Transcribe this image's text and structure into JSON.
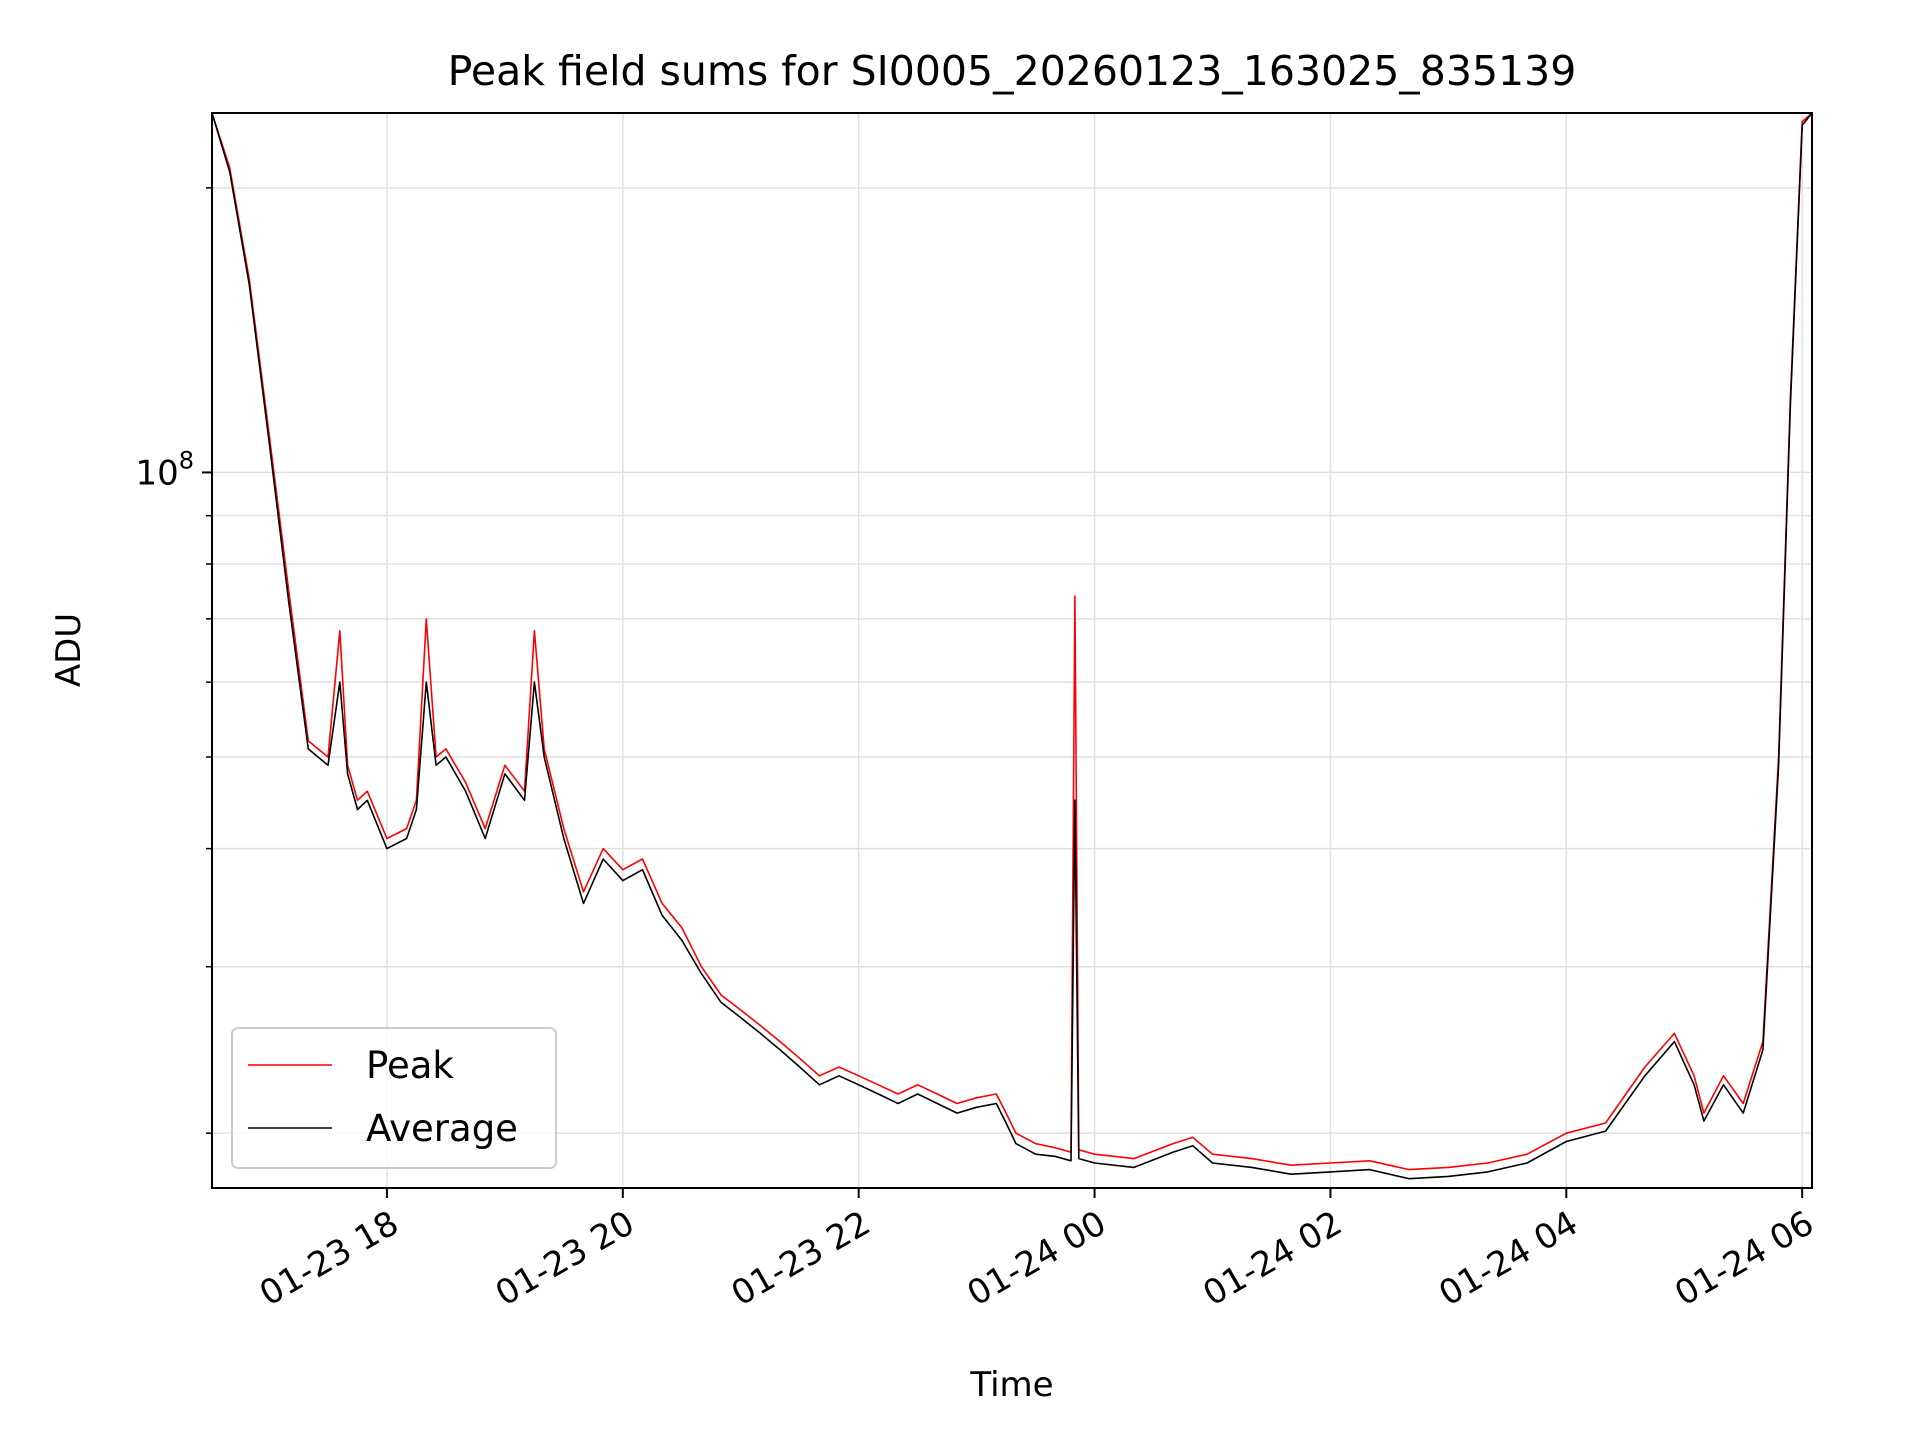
{
  "chart_data": {
    "type": "line",
    "title": "Peak field sums for SI0005_20260123_163025_835139",
    "xlabel": "Time",
    "ylabel": "ADU",
    "x_ticks": [
      "01-23 18",
      "01-23 20",
      "01-23 22",
      "01-24 00",
      "01-24 02",
      "01-24 04",
      "01-24 06"
    ],
    "x_tick_datetimes": [
      "2026-01-23T18:00",
      "2026-01-23T20:00",
      "2026-01-23T22:00",
      "2026-01-24T00:00",
      "2026-01-24T02:00",
      "2026-01-24T04:00",
      "2026-01-24T06:00"
    ],
    "y_scale": "log",
    "y_major_tick_labels": [
      {
        "value": 100000000,
        "base": "10",
        "exp": "8"
      }
    ],
    "y_minor_ticks": [
      20000000,
      30000000,
      40000000,
      50000000,
      60000000,
      70000000,
      80000000,
      90000000,
      200000000
    ],
    "xlim": [
      "2026-01-23T16:31",
      "2026-01-24T06:05"
    ],
    "ylim": [
      17500000,
      240000000
    ],
    "grid": true,
    "legend": {
      "position": "lower-left"
    },
    "series": [
      {
        "name": "Peak",
        "color": "#ff0000",
        "points": [
          [
            "2026-01-23T16:31",
            240000000
          ],
          [
            "2026-01-23T16:40",
            210000000
          ],
          [
            "2026-01-23T16:50",
            160000000
          ],
          [
            "2026-01-23T17:00",
            110000000
          ],
          [
            "2026-01-23T17:10",
            75000000
          ],
          [
            "2026-01-23T17:20",
            52000000
          ],
          [
            "2026-01-23T17:30",
            50000000
          ],
          [
            "2026-01-23T17:36",
            68000000
          ],
          [
            "2026-01-23T17:40",
            49000000
          ],
          [
            "2026-01-23T17:45",
            45000000
          ],
          [
            "2026-01-23T17:50",
            46000000
          ],
          [
            "2026-01-23T18:00",
            41000000
          ],
          [
            "2026-01-23T18:10",
            42000000
          ],
          [
            "2026-01-23T18:15",
            45000000
          ],
          [
            "2026-01-23T18:20",
            70000000
          ],
          [
            "2026-01-23T18:25",
            50000000
          ],
          [
            "2026-01-23T18:30",
            51000000
          ],
          [
            "2026-01-23T18:40",
            47000000
          ],
          [
            "2026-01-23T18:50",
            42000000
          ],
          [
            "2026-01-23T19:00",
            49000000
          ],
          [
            "2026-01-23T19:10",
            46000000
          ],
          [
            "2026-01-23T19:15",
            68000000
          ],
          [
            "2026-01-23T19:20",
            51000000
          ],
          [
            "2026-01-23T19:30",
            42000000
          ],
          [
            "2026-01-23T19:40",
            36000000
          ],
          [
            "2026-01-23T19:50",
            40000000
          ],
          [
            "2026-01-23T20:00",
            38000000
          ],
          [
            "2026-01-23T20:10",
            39000000
          ],
          [
            "2026-01-23T20:20",
            35000000
          ],
          [
            "2026-01-23T20:30",
            33000000
          ],
          [
            "2026-01-23T20:40",
            30000000
          ],
          [
            "2026-01-23T20:50",
            28000000
          ],
          [
            "2026-01-23T21:00",
            27000000
          ],
          [
            "2026-01-23T21:10",
            26000000
          ],
          [
            "2026-01-23T21:20",
            25000000
          ],
          [
            "2026-01-23T21:30",
            24000000
          ],
          [
            "2026-01-23T21:40",
            23000000
          ],
          [
            "2026-01-23T21:50",
            23500000
          ],
          [
            "2026-01-23T22:00",
            23000000
          ],
          [
            "2026-01-23T22:10",
            22500000
          ],
          [
            "2026-01-23T22:20",
            22000000
          ],
          [
            "2026-01-23T22:30",
            22500000
          ],
          [
            "2026-01-23T22:40",
            22000000
          ],
          [
            "2026-01-23T22:50",
            21500000
          ],
          [
            "2026-01-23T23:00",
            21800000
          ],
          [
            "2026-01-23T23:10",
            22000000
          ],
          [
            "2026-01-23T23:15",
            21000000
          ],
          [
            "2026-01-23T23:20",
            20000000
          ],
          [
            "2026-01-23T23:30",
            19500000
          ],
          [
            "2026-01-23T23:40",
            19300000
          ],
          [
            "2026-01-23T23:48",
            19100000
          ],
          [
            "2026-01-23T23:50",
            74000000
          ],
          [
            "2026-01-23T23:52",
            19200000
          ],
          [
            "2026-01-24T00:00",
            19000000
          ],
          [
            "2026-01-24T00:20",
            18800000
          ],
          [
            "2026-01-24T00:40",
            19500000
          ],
          [
            "2026-01-24T00:50",
            19800000
          ],
          [
            "2026-01-24T01:00",
            19000000
          ],
          [
            "2026-01-24T01:20",
            18800000
          ],
          [
            "2026-01-24T01:40",
            18500000
          ],
          [
            "2026-01-24T02:00",
            18600000
          ],
          [
            "2026-01-24T02:20",
            18700000
          ],
          [
            "2026-01-24T02:40",
            18300000
          ],
          [
            "2026-01-24T03:00",
            18400000
          ],
          [
            "2026-01-24T03:20",
            18600000
          ],
          [
            "2026-01-24T03:40",
            19000000
          ],
          [
            "2026-01-24T04:00",
            20000000
          ],
          [
            "2026-01-24T04:20",
            20500000
          ],
          [
            "2026-01-24T04:40",
            23500000
          ],
          [
            "2026-01-24T04:55",
            25500000
          ],
          [
            "2026-01-24T05:05",
            23000000
          ],
          [
            "2026-01-24T05:10",
            21000000
          ],
          [
            "2026-01-24T05:20",
            23000000
          ],
          [
            "2026-01-24T05:30",
            21500000
          ],
          [
            "2026-01-24T05:40",
            25000000
          ],
          [
            "2026-01-24T05:48",
            50000000
          ],
          [
            "2026-01-24T05:54",
            120000000
          ],
          [
            "2026-01-24T06:00",
            235000000
          ],
          [
            "2026-01-24T06:05",
            240000000
          ]
        ]
      },
      {
        "name": "Average",
        "color": "#000000",
        "points": [
          [
            "2026-01-23T16:31",
            240000000
          ],
          [
            "2026-01-23T16:40",
            208000000
          ],
          [
            "2026-01-23T16:50",
            158000000
          ],
          [
            "2026-01-23T17:00",
            108000000
          ],
          [
            "2026-01-23T17:10",
            73000000
          ],
          [
            "2026-01-23T17:20",
            51000000
          ],
          [
            "2026-01-23T17:30",
            49000000
          ],
          [
            "2026-01-23T17:36",
            60000000
          ],
          [
            "2026-01-23T17:40",
            48000000
          ],
          [
            "2026-01-23T17:45",
            44000000
          ],
          [
            "2026-01-23T17:50",
            45000000
          ],
          [
            "2026-01-23T18:00",
            40000000
          ],
          [
            "2026-01-23T18:10",
            41000000
          ],
          [
            "2026-01-23T18:15",
            44000000
          ],
          [
            "2026-01-23T18:20",
            60000000
          ],
          [
            "2026-01-23T18:25",
            49000000
          ],
          [
            "2026-01-23T18:30",
            50000000
          ],
          [
            "2026-01-23T18:40",
            46000000
          ],
          [
            "2026-01-23T18:50",
            41000000
          ],
          [
            "2026-01-23T19:00",
            48000000
          ],
          [
            "2026-01-23T19:10",
            45000000
          ],
          [
            "2026-01-23T19:15",
            60000000
          ],
          [
            "2026-01-23T19:20",
            50000000
          ],
          [
            "2026-01-23T19:30",
            41000000
          ],
          [
            "2026-01-23T19:40",
            35000000
          ],
          [
            "2026-01-23T19:50",
            39000000
          ],
          [
            "2026-01-23T20:00",
            37000000
          ],
          [
            "2026-01-23T20:10",
            38000000
          ],
          [
            "2026-01-23T20:20",
            34000000
          ],
          [
            "2026-01-23T20:30",
            32000000
          ],
          [
            "2026-01-23T20:40",
            29500000
          ],
          [
            "2026-01-23T20:50",
            27500000
          ],
          [
            "2026-01-23T21:00",
            26500000
          ],
          [
            "2026-01-23T21:10",
            25500000
          ],
          [
            "2026-01-23T21:20",
            24500000
          ],
          [
            "2026-01-23T21:30",
            23500000
          ],
          [
            "2026-01-23T21:40",
            22500000
          ],
          [
            "2026-01-23T21:50",
            23000000
          ],
          [
            "2026-01-23T22:00",
            22500000
          ],
          [
            "2026-01-23T22:10",
            22000000
          ],
          [
            "2026-01-23T22:20",
            21500000
          ],
          [
            "2026-01-23T22:30",
            22000000
          ],
          [
            "2026-01-23T22:40",
            21500000
          ],
          [
            "2026-01-23T22:50",
            21000000
          ],
          [
            "2026-01-23T23:00",
            21300000
          ],
          [
            "2026-01-23T23:10",
            21500000
          ],
          [
            "2026-01-23T23:15",
            20500000
          ],
          [
            "2026-01-23T23:20",
            19500000
          ],
          [
            "2026-01-23T23:30",
            19000000
          ],
          [
            "2026-01-23T23:40",
            18900000
          ],
          [
            "2026-01-23T23:48",
            18700000
          ],
          [
            "2026-01-23T23:50",
            45000000
          ],
          [
            "2026-01-23T23:52",
            18800000
          ],
          [
            "2026-01-24T00:00",
            18600000
          ],
          [
            "2026-01-24T00:20",
            18400000
          ],
          [
            "2026-01-24T00:40",
            19100000
          ],
          [
            "2026-01-24T00:50",
            19400000
          ],
          [
            "2026-01-24T01:00",
            18600000
          ],
          [
            "2026-01-24T01:20",
            18400000
          ],
          [
            "2026-01-24T01:40",
            18100000
          ],
          [
            "2026-01-24T02:00",
            18200000
          ],
          [
            "2026-01-24T02:20",
            18300000
          ],
          [
            "2026-01-24T02:40",
            17900000
          ],
          [
            "2026-01-24T03:00",
            18000000
          ],
          [
            "2026-01-24T03:20",
            18200000
          ],
          [
            "2026-01-24T03:40",
            18600000
          ],
          [
            "2026-01-24T04:00",
            19600000
          ],
          [
            "2026-01-24T04:20",
            20100000
          ],
          [
            "2026-01-24T04:40",
            23000000
          ],
          [
            "2026-01-24T04:55",
            25000000
          ],
          [
            "2026-01-24T05:05",
            22500000
          ],
          [
            "2026-01-24T05:10",
            20600000
          ],
          [
            "2026-01-24T05:20",
            22500000
          ],
          [
            "2026-01-24T05:30",
            21000000
          ],
          [
            "2026-01-24T05:40",
            24500000
          ],
          [
            "2026-01-24T05:48",
            49000000
          ],
          [
            "2026-01-24T05:54",
            118000000
          ],
          [
            "2026-01-24T06:00",
            233000000
          ],
          [
            "2026-01-24T06:05",
            240000000
          ]
        ]
      }
    ]
  }
}
